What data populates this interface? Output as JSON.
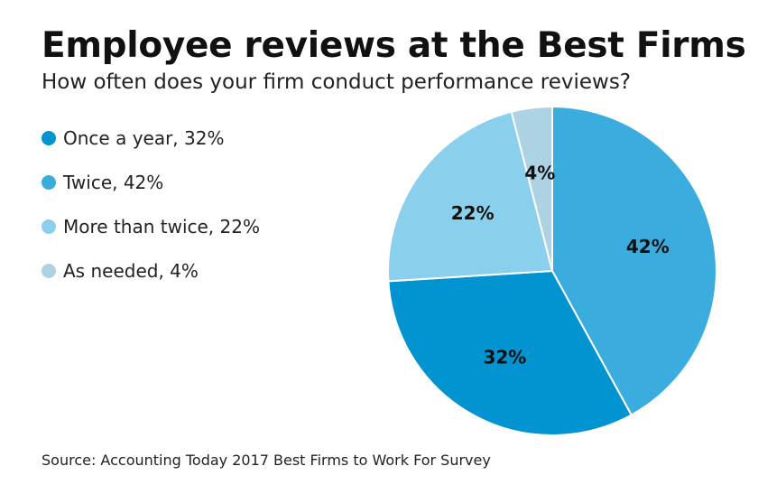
{
  "header": {
    "title": "Employee reviews at the Best Firms",
    "subtitle": "How often does your firm conduct performance reviews?"
  },
  "legend": {
    "items": [
      {
        "label": "Once a year, 32%",
        "color": "#0293D1"
      },
      {
        "label": "Twice, 42%",
        "color": "#3AADDE"
      },
      {
        "label": "More than twice, 22%",
        "color": "#8ACFEC"
      },
      {
        "label": "As needed, 4%",
        "color": "#ADD2E3"
      }
    ]
  },
  "footer": {
    "source": "Source: Accounting Today 2017 Best Firms to Work For Survey"
  },
  "chart_data": {
    "type": "pie",
    "title": "Employee reviews at the Best Firms",
    "subtitle": "How often does your firm conduct performance reviews?",
    "slices": [
      {
        "name": "Twice",
        "value": 42,
        "label": "42%",
        "color": "#3AADDE"
      },
      {
        "name": "Once a year",
        "value": 32,
        "label": "32%",
        "color": "#0293D1"
      },
      {
        "name": "More than twice",
        "value": 22,
        "label": "22%",
        "color": "#8ACFEC"
      },
      {
        "name": "As needed",
        "value": 4,
        "label": "4%",
        "color": "#ADD2E3"
      }
    ],
    "start": "12 o'clock",
    "direction": "clockwise",
    "legend_position": "left"
  }
}
